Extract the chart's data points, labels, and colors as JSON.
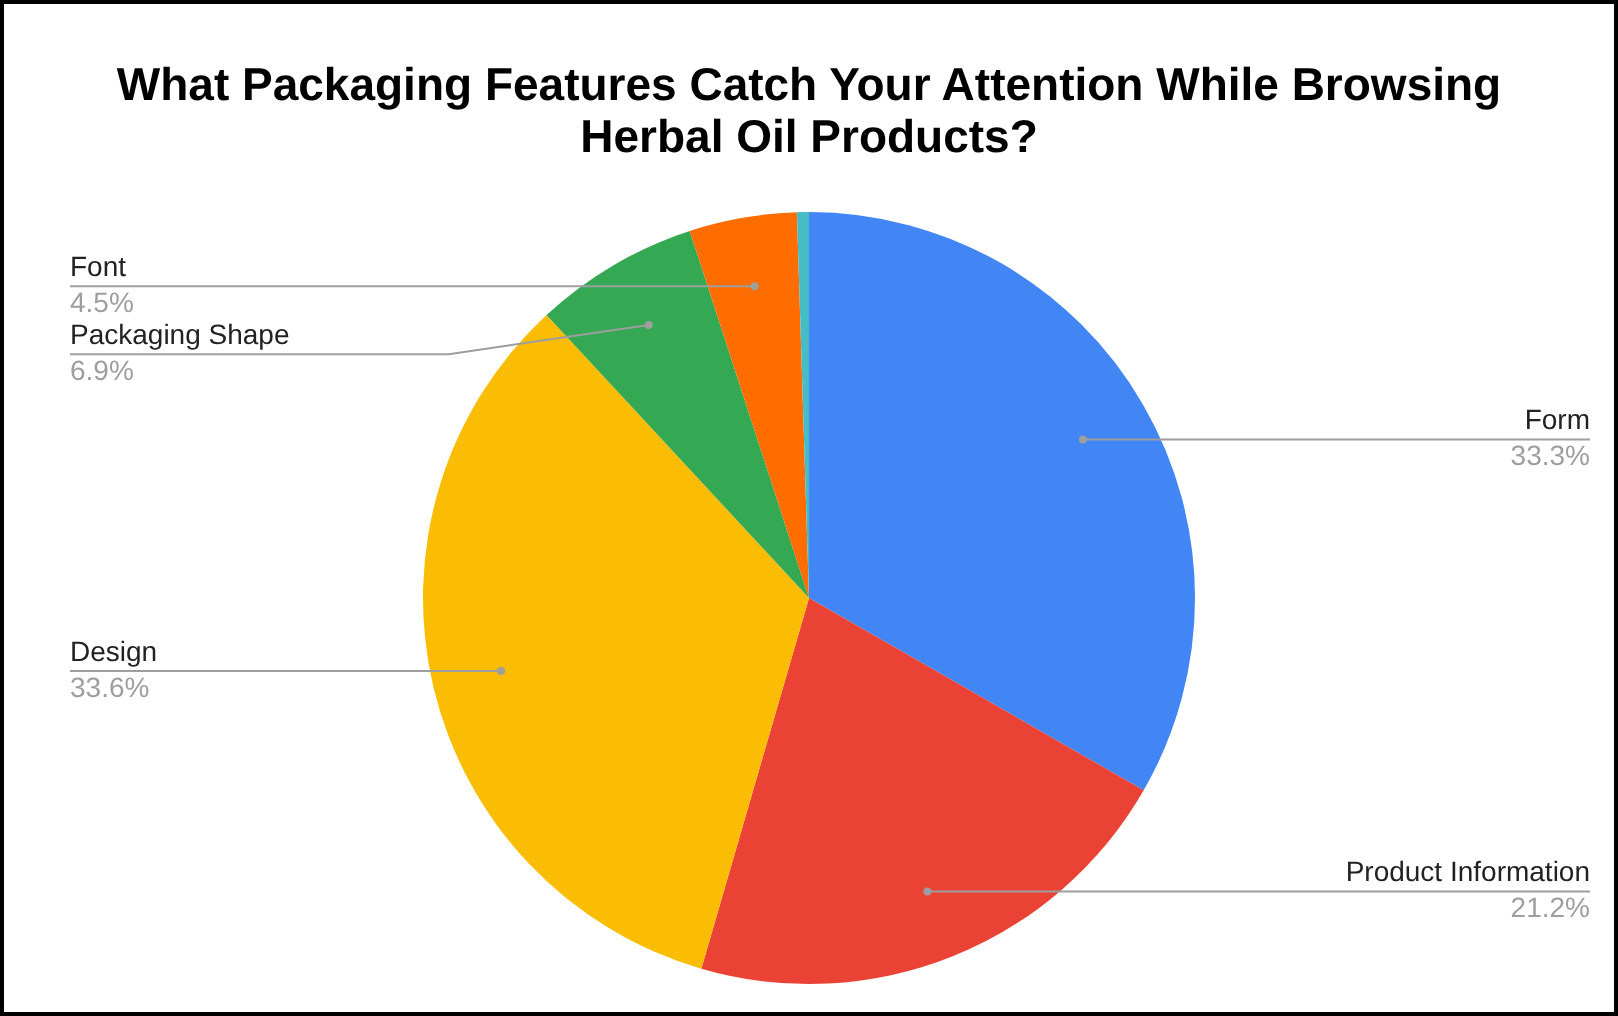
{
  "chart_data": {
    "type": "pie",
    "title": "What Packaging Features Catch Your Attention While Browsing Herbal Oil Products?",
    "categories": [
      "Form",
      "Product Information",
      "Design",
      "Packaging Shape",
      "Font",
      null
    ],
    "values": [
      33.3,
      21.2,
      33.6,
      6.9,
      4.5,
      0.5
    ],
    "colors": [
      "#4285f4",
      "#ea4335",
      "#fbbc04",
      "#34a853",
      "#ff6d01",
      "#46bdc6"
    ],
    "value_labels": [
      "33.3%",
      "21.2%",
      "33.6%",
      "6.9%",
      "4.5%",
      null
    ],
    "legend": false
  }
}
